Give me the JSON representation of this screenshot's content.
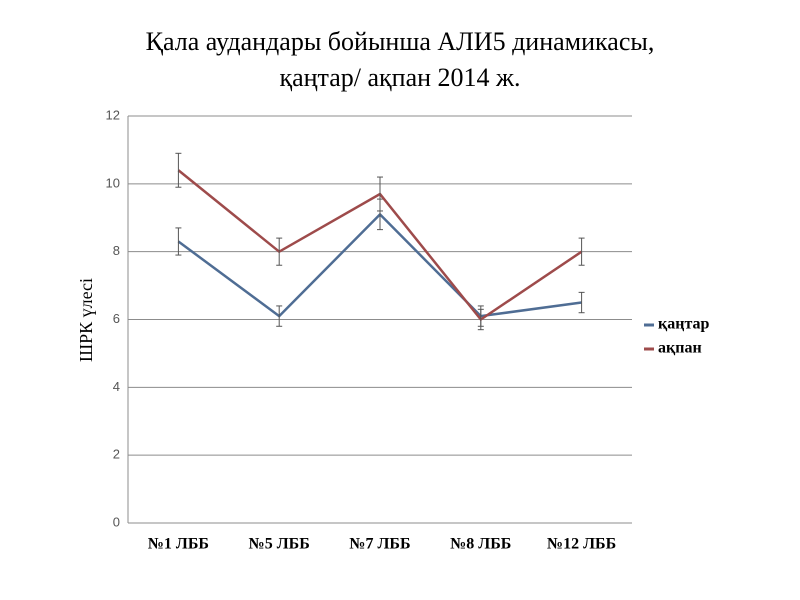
{
  "chart_data": {
    "type": "line",
    "title": [
      "Қала аудандары бойынша АЛИ5 динамикасы,",
      "қаңтар/ ақпан 2014 ж."
    ],
    "y_label": "ШРК үлесі",
    "categories": [
      "№1 ЛББ",
      "№5 ЛББ",
      "№7 ЛББ",
      "№8 ЛББ",
      "№12 ЛББ"
    ],
    "series": [
      {
        "name": "қаңтар",
        "color": "#4f6d94",
        "values": [
          8.3,
          6.1,
          9.1,
          6.1,
          6.5
        ],
        "errors": [
          0.4,
          0.3,
          0.45,
          0.3,
          0.3
        ]
      },
      {
        "name": "ақпан",
        "color": "#9e4b4b",
        "values": [
          10.4,
          8.0,
          9.7,
          6.0,
          8.0
        ],
        "errors": [
          0.5,
          0.4,
          0.5,
          0.3,
          0.4
        ]
      }
    ],
    "ylim": [
      0,
      12
    ],
    "yticks": [
      0,
      2,
      4,
      6,
      8,
      10,
      12
    ],
    "grid": true,
    "legend": "right"
  }
}
